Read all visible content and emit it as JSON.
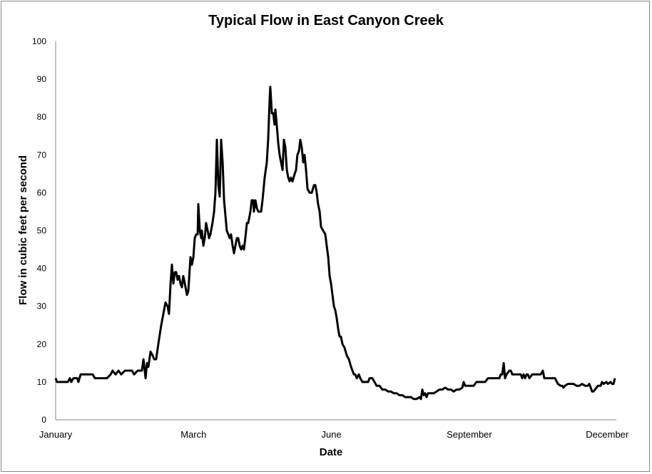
{
  "chart_data": {
    "type": "line",
    "title": "Typical Flow in East Canyon Creek",
    "xlabel": "Date",
    "ylabel": "Flow in cubic feet per second",
    "xlim": [
      0,
      365
    ],
    "ylim": [
      0,
      100
    ],
    "yticks": [
      0,
      10,
      20,
      30,
      40,
      50,
      60,
      70,
      80,
      90,
      100
    ],
    "xticks": [
      {
        "label": "January",
        "day": 0
      },
      {
        "label": "March",
        "day": 90
      },
      {
        "label": "June",
        "day": 180
      },
      {
        "label": "September",
        "day": 270
      },
      {
        "label": "December",
        "day": 360
      }
    ],
    "grid": false,
    "legend": "none",
    "series": [
      {
        "name": "Flow",
        "color": "#000000",
        "points": [
          [
            0,
            11
          ],
          [
            0.9,
            10
          ],
          [
            4.7,
            10
          ],
          [
            7.9,
            10
          ],
          [
            9.3,
            11
          ],
          [
            10.2,
            10
          ],
          [
            11.6,
            11
          ],
          [
            14.0,
            11
          ],
          [
            14.9,
            10
          ],
          [
            16.3,
            12
          ],
          [
            24.2,
            12
          ],
          [
            25.6,
            11
          ],
          [
            33.5,
            11
          ],
          [
            35.9,
            12
          ],
          [
            37.2,
            13
          ],
          [
            39.1,
            12
          ],
          [
            41.0,
            13
          ],
          [
            42.8,
            12
          ],
          [
            45.2,
            13
          ],
          [
            49.8,
            13
          ],
          [
            51.2,
            12
          ],
          [
            53.5,
            13
          ],
          [
            56.3,
            13
          ],
          [
            57.3,
            16
          ],
          [
            58.7,
            11
          ],
          [
            59.6,
            15
          ],
          [
            60.5,
            14
          ],
          [
            61.9,
            18
          ],
          [
            63.3,
            17
          ],
          [
            64.3,
            16
          ],
          [
            65.6,
            16
          ],
          [
            67.0,
            20
          ],
          [
            68.9,
            25
          ],
          [
            70.3,
            28
          ],
          [
            71.7,
            31
          ],
          [
            73.1,
            30
          ],
          [
            74.0,
            28
          ],
          [
            75.0,
            36
          ],
          [
            75.9,
            41
          ],
          [
            76.8,
            36
          ],
          [
            77.8,
            39
          ],
          [
            78.7,
            39
          ],
          [
            79.6,
            37
          ],
          [
            80.5,
            38
          ],
          [
            81.5,
            36
          ],
          [
            82.4,
            35
          ],
          [
            83.3,
            38
          ],
          [
            84.3,
            36
          ],
          [
            85.7,
            33
          ],
          [
            86.6,
            34
          ],
          [
            88.0,
            43
          ],
          [
            88.9,
            41
          ],
          [
            89.9,
            43
          ],
          [
            90.8,
            48
          ],
          [
            91.7,
            49
          ],
          [
            92.7,
            49
          ],
          [
            93.1,
            57
          ],
          [
            94.1,
            50
          ],
          [
            95.0,
            48
          ],
          [
            95.4,
            50
          ],
          [
            96.4,
            46
          ],
          [
            97.3,
            48
          ],
          [
            98.2,
            52
          ],
          [
            99.2,
            50
          ],
          [
            100.1,
            48
          ],
          [
            101.0,
            49
          ],
          [
            102.4,
            52
          ],
          [
            103.4,
            55
          ],
          [
            104.3,
            60
          ],
          [
            105.2,
            74
          ],
          [
            106.2,
            62
          ],
          [
            107.1,
            59
          ],
          [
            108.0,
            74
          ],
          [
            109.0,
            68
          ],
          [
            109.9,
            58
          ],
          [
            110.8,
            54
          ],
          [
            111.7,
            50
          ],
          [
            112.7,
            49
          ],
          [
            113.6,
            48
          ],
          [
            114.5,
            49
          ],
          [
            115.5,
            46
          ],
          [
            116.4,
            44
          ],
          [
            117.3,
            46
          ],
          [
            118.3,
            48
          ],
          [
            119.2,
            48
          ],
          [
            120.1,
            46
          ],
          [
            121.1,
            45
          ],
          [
            122.0,
            46
          ],
          [
            122.9,
            45
          ],
          [
            123.8,
            48
          ],
          [
            124.8,
            52
          ],
          [
            125.7,
            52
          ],
          [
            127.1,
            55
          ],
          [
            128.0,
            58
          ],
          [
            129.0,
            58
          ],
          [
            129.4,
            55
          ],
          [
            130.4,
            58
          ],
          [
            131.3,
            56
          ],
          [
            132.2,
            55
          ],
          [
            134.1,
            55
          ],
          [
            135.0,
            58
          ],
          [
            136.4,
            64
          ],
          [
            137.8,
            68
          ],
          [
            138.7,
            74
          ],
          [
            139.7,
            85
          ],
          [
            140.1,
            88
          ],
          [
            141.1,
            81
          ],
          [
            142.0,
            81
          ],
          [
            142.9,
            78
          ],
          [
            143.4,
            82
          ],
          [
            144.3,
            78
          ],
          [
            145.3,
            73
          ],
          [
            146.2,
            70
          ],
          [
            147.1,
            68
          ],
          [
            148.1,
            66
          ],
          [
            149.0,
            74
          ],
          [
            149.9,
            72
          ],
          [
            150.9,
            66
          ],
          [
            151.8,
            64
          ],
          [
            152.7,
            63
          ],
          [
            153.6,
            64
          ],
          [
            154.6,
            63
          ],
          [
            156.0,
            65
          ],
          [
            156.9,
            66
          ],
          [
            157.8,
            70
          ],
          [
            158.8,
            71
          ],
          [
            159.7,
            74
          ],
          [
            160.6,
            72
          ],
          [
            161.6,
            68
          ],
          [
            162.5,
            70
          ],
          [
            163.4,
            66
          ],
          [
            164.4,
            61
          ],
          [
            165.8,
            60
          ],
          [
            167.2,
            60
          ],
          [
            168.6,
            62
          ],
          [
            169.5,
            62
          ],
          [
            170.4,
            60
          ],
          [
            171.3,
            57
          ],
          [
            172.3,
            55
          ],
          [
            173.2,
            51
          ],
          [
            174.6,
            50
          ],
          [
            176.0,
            49
          ],
          [
            176.9,
            46
          ],
          [
            177.9,
            43
          ],
          [
            178.8,
            38
          ],
          [
            179.7,
            36
          ],
          [
            180.7,
            33
          ],
          [
            181.6,
            30
          ],
          [
            182.5,
            29
          ],
          [
            183.4,
            27
          ],
          [
            184.4,
            24
          ],
          [
            185.3,
            22
          ],
          [
            186.2,
            22
          ],
          [
            187.2,
            20
          ],
          [
            188.6,
            19
          ],
          [
            190.0,
            17
          ],
          [
            191.4,
            16
          ],
          [
            192.8,
            14
          ],
          [
            193.7,
            13
          ],
          [
            194.6,
            12
          ],
          [
            195.6,
            12
          ],
          [
            196.5,
            11
          ],
          [
            197.9,
            12
          ],
          [
            198.8,
            11
          ],
          [
            200.2,
            10
          ],
          [
            202.1,
            10
          ],
          [
            203.9,
            10
          ],
          [
            204.9,
            11
          ],
          [
            206.7,
            11
          ],
          [
            208.1,
            10
          ],
          [
            209.5,
            9
          ],
          [
            211.4,
            9
          ],
          [
            213.2,
            8
          ],
          [
            215.1,
            8
          ],
          [
            217.0,
            7.5
          ],
          [
            218.8,
            7.5
          ],
          [
            220.7,
            7
          ],
          [
            222.6,
            7
          ],
          [
            224.4,
            6.5
          ],
          [
            226.3,
            6.5
          ],
          [
            228.1,
            6
          ],
          [
            230.0,
            6
          ],
          [
            231.9,
            6
          ],
          [
            233.7,
            5.5
          ],
          [
            235.6,
            5.5
          ],
          [
            237.5,
            6
          ],
          [
            238.4,
            5.5
          ],
          [
            239.3,
            8
          ],
          [
            240.3,
            6.5
          ],
          [
            241.2,
            7
          ],
          [
            242.1,
            6
          ],
          [
            243.0,
            7
          ],
          [
            244.0,
            7
          ],
          [
            245.4,
            7
          ],
          [
            246.8,
            7
          ],
          [
            248.6,
            7.5
          ],
          [
            250.5,
            8
          ],
          [
            252.4,
            8
          ],
          [
            254.2,
            8.5
          ],
          [
            256.1,
            8
          ],
          [
            257.9,
            8
          ],
          [
            259.8,
            7.5
          ],
          [
            261.7,
            8
          ],
          [
            263.5,
            8
          ],
          [
            265.4,
            8.5
          ],
          [
            266.3,
            10
          ],
          [
            267.3,
            9
          ],
          [
            269.1,
            9
          ],
          [
            271.0,
            9
          ],
          [
            272.8,
            9
          ],
          [
            274.7,
            10
          ],
          [
            276.6,
            10
          ],
          [
            278.4,
            10
          ],
          [
            280.3,
            10
          ],
          [
            282.2,
            11
          ],
          [
            284.0,
            11
          ],
          [
            285.9,
            11
          ],
          [
            287.7,
            11
          ],
          [
            289.6,
            11
          ],
          [
            290.5,
            12
          ],
          [
            291.5,
            12
          ],
          [
            292.4,
            15
          ],
          [
            293.3,
            11
          ],
          [
            294.3,
            12
          ],
          [
            296.1,
            13
          ],
          [
            297.1,
            13
          ],
          [
            298.0,
            12
          ],
          [
            299.9,
            12
          ],
          [
            301.7,
            12
          ],
          [
            303.6,
            12
          ],
          [
            304.5,
            11
          ],
          [
            305.4,
            12
          ],
          [
            306.4,
            11
          ],
          [
            307.3,
            12
          ],
          [
            308.2,
            12
          ],
          [
            309.2,
            11
          ],
          [
            311.0,
            12
          ],
          [
            312.9,
            12
          ],
          [
            314.7,
            12
          ],
          [
            316.6,
            12
          ],
          [
            318.0,
            13
          ],
          [
            318.9,
            11
          ],
          [
            320.3,
            11
          ],
          [
            322.2,
            11
          ],
          [
            324.1,
            11
          ],
          [
            325.9,
            11
          ],
          [
            327.8,
            9.5
          ],
          [
            329.6,
            9
          ],
          [
            330.6,
            9
          ],
          [
            331.5,
            8.5
          ],
          [
            332.4,
            9
          ],
          [
            334.3,
            9.5
          ],
          [
            336.2,
            9.5
          ],
          [
            338.0,
            9.5
          ],
          [
            339.9,
            9
          ],
          [
            341.8,
            9
          ],
          [
            343.6,
            9.5
          ],
          [
            345.5,
            9
          ],
          [
            347.3,
            9
          ],
          [
            348.3,
            9.5
          ],
          [
            349.2,
            8.5
          ],
          [
            350.1,
            7.5
          ],
          [
            351.1,
            7.5
          ],
          [
            352.0,
            8
          ],
          [
            353.9,
            9
          ],
          [
            355.7,
            9
          ],
          [
            356.6,
            10
          ],
          [
            357.6,
            9.5
          ],
          [
            359.4,
            10
          ],
          [
            360.4,
            9.5
          ],
          [
            362.2,
            10
          ],
          [
            363.2,
            9.5
          ],
          [
            364.1,
            9.5
          ],
          [
            365.0,
            11
          ]
        ]
      }
    ]
  }
}
